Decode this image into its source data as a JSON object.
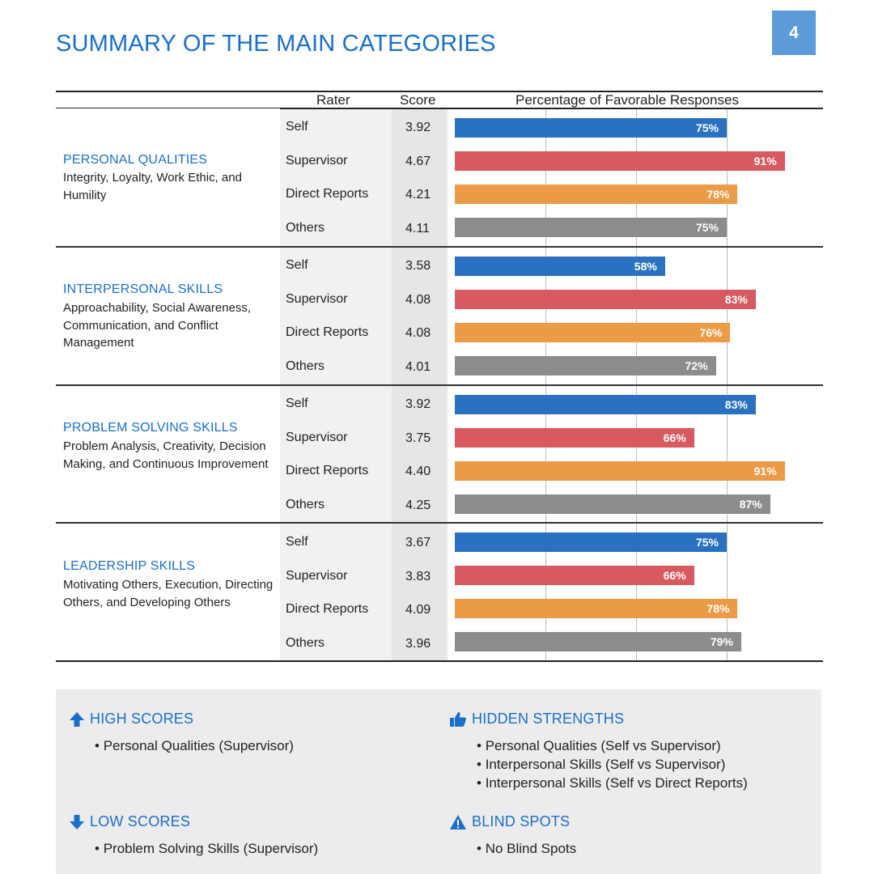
{
  "page": {
    "title": "SUMMARY OF THE MAIN CATEGORIES",
    "number": "4"
  },
  "table": {
    "headers": {
      "rater": "Rater",
      "score": "Score",
      "percentage": "Percentage of Favorable Responses"
    }
  },
  "colors": {
    "Self": "#2a72c1",
    "Supervisor": "#d95960",
    "Direct Reports": "#ec9a45",
    "Others": "#8a8c8e",
    "accent": "#1a6fc9"
  },
  "chart_data": {
    "type": "bar",
    "xlabel": "Percentage of Favorable Responses",
    "xlim": [
      0,
      100
    ],
    "categories": [
      {
        "title": "PERSONAL QUALITIES",
        "description": "Integrity, Loyalty, Work Ethic, and Humility",
        "rows": [
          {
            "rater": "Self",
            "score": "3.92",
            "value": 75,
            "label": "75%"
          },
          {
            "rater": "Supervisor",
            "score": "4.67",
            "value": 91,
            "label": "91%"
          },
          {
            "rater": "Direct Reports",
            "score": "4.21",
            "value": 78,
            "label": "78%"
          },
          {
            "rater": "Others",
            "score": "4.11",
            "value": 75,
            "label": "75%"
          }
        ]
      },
      {
        "title": "INTERPERSONAL SKILLS",
        "description": "Approachability, Social Awareness, Communication, and Conflict Management",
        "rows": [
          {
            "rater": "Self",
            "score": "3.58",
            "value": 58,
            "label": "58%"
          },
          {
            "rater": "Supervisor",
            "score": "4.08",
            "value": 83,
            "label": "83%"
          },
          {
            "rater": "Direct Reports",
            "score": "4.08",
            "value": 76,
            "label": "76%"
          },
          {
            "rater": "Others",
            "score": "4.01",
            "value": 72,
            "label": "72%"
          }
        ]
      },
      {
        "title": "PROBLEM SOLVING SKILLS",
        "description": "Problem Analysis, Creativity, Decision Making, and Continuous Improvement",
        "rows": [
          {
            "rater": "Self",
            "score": "3.92",
            "value": 83,
            "label": "83%"
          },
          {
            "rater": "Supervisor",
            "score": "3.75",
            "value": 66,
            "label": "66%"
          },
          {
            "rater": "Direct Reports",
            "score": "4.40",
            "value": 91,
            "label": "91%"
          },
          {
            "rater": "Others",
            "score": "4.25",
            "value": 87,
            "label": "87%"
          }
        ]
      },
      {
        "title": "LEADERSHIP SKILLS",
        "description": "Motivating Others, Execution, Directing Others, and Developing Others",
        "rows": [
          {
            "rater": "Self",
            "score": "3.67",
            "value": 75,
            "label": "75%"
          },
          {
            "rater": "Supervisor",
            "score": "3.83",
            "value": 66,
            "label": "66%"
          },
          {
            "rater": "Direct Reports",
            "score": "4.09",
            "value": 78,
            "label": "78%"
          },
          {
            "rater": "Others",
            "score": "3.96",
            "value": 79,
            "label": "79%"
          }
        ]
      }
    ]
  },
  "notes": {
    "high": {
      "title": "HIGH SCORES",
      "icon": "arrow-up-icon",
      "items": [
        "Personal Qualities (Supervisor)"
      ]
    },
    "hidden": {
      "title": "HIDDEN STRENGTHS",
      "icon": "thumbs-up-icon",
      "items": [
        "Personal Qualities (Self vs Supervisor)",
        "Interpersonal Skills (Self vs Supervisor)",
        "Interpersonal Skills (Self vs Direct Reports)"
      ]
    },
    "low": {
      "title": "LOW SCORES",
      "icon": "arrow-down-icon",
      "items": [
        "Problem Solving Skills (Supervisor)"
      ]
    },
    "blind": {
      "title": "BLIND SPOTS",
      "icon": "warning-icon",
      "items": [
        "No Blind Spots"
      ]
    }
  }
}
